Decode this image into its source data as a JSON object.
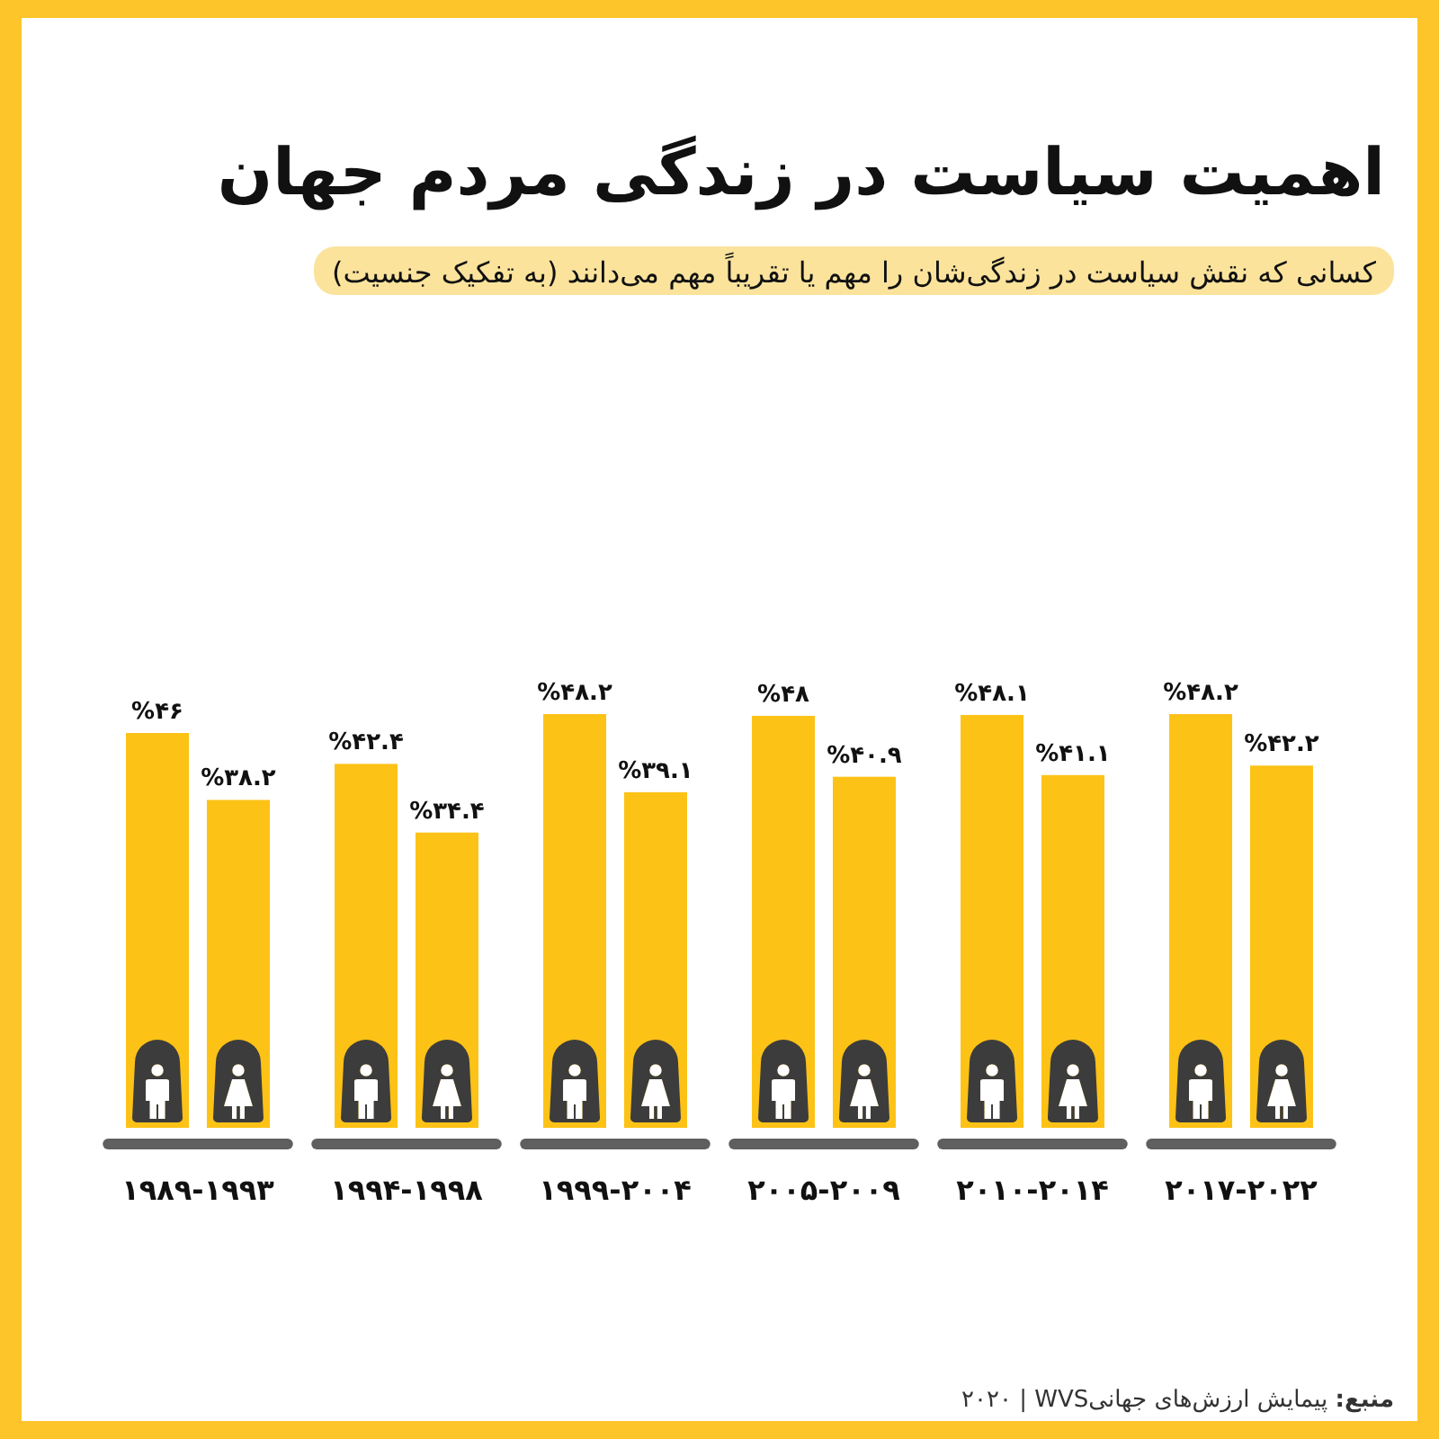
{
  "chart_data": {
    "type": "bar",
    "title": "اهمیت سیاست در زندگی مردم جهان",
    "subtitle": "کسانی که نقش سیاست در زندگی‌شان را مهم یا تقریباً مهم می‌دانند (به تفکیک جنسیت)",
    "categories": [
      "۱۹۸۹-۱۹۹۳",
      "۱۹۹۴-۱۹۹۸",
      "۱۹۹۹-۲۰۰۴",
      "۲۰۰۵-۲۰۰۹",
      "۲۰۱۰-۲۰۱۴",
      "۲۰۱۷-۲۰۲۲"
    ],
    "series": [
      {
        "color": "#fdc216",
        "values": [
          46,
          42.4,
          48.2,
          48,
          48.1,
          48.2
        ],
        "value_labels": [
          "%۴۶",
          "%۴۲.۴",
          "%۴۸.۲",
          "%۴۸",
          "%۴۸.۱",
          "%۴۸.۲"
        ]
      },
      {
        "color": "#fdc216",
        "values": [
          38.2,
          34.4,
          39.1,
          40.9,
          41.1,
          42.2
        ],
        "value_labels": [
          "%۳۸.۲",
          "%۳۴.۴",
          "%۳۹.۱",
          "%۴۰.۹",
          "%۴۱.۱",
          "%۴۲.۲"
        ]
      }
    ],
    "tick_labels": "x",
    "annotations": [
      "منبع: پیمایش ارزش‌های جهانیWVS | ۲۰۲۰"
    ]
  }
}
